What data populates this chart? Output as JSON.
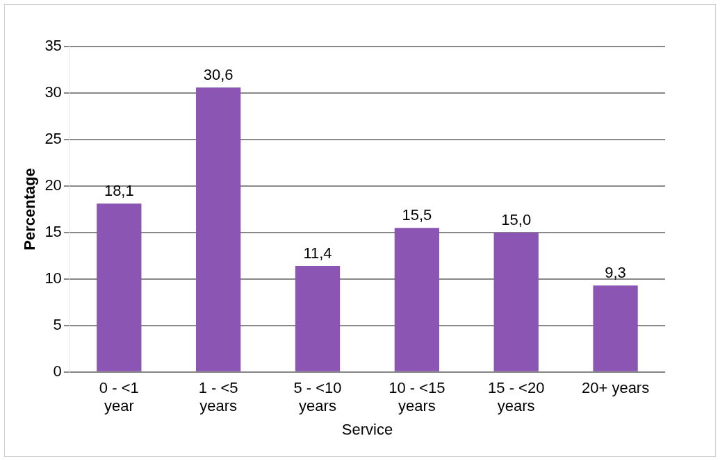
{
  "chart_data": {
    "type": "bar",
    "xlabel": "Service",
    "ylabel": "Percentage",
    "categories": [
      "0 - <1 year",
      "1 - <5 years",
      "5 - <10 years",
      "10 - <15 years",
      "15 - <20 years",
      "20+ years"
    ],
    "values": [
      18.1,
      30.6,
      11.4,
      15.5,
      15.0,
      9.3
    ],
    "value_labels": [
      "18,1",
      "30,6",
      "11,4",
      "15,5",
      "15,0",
      "9,3"
    ],
    "color": "#8b55b4",
    "ylim": [
      0,
      35
    ],
    "yticks": [
      0,
      5,
      10,
      15,
      20,
      25,
      30,
      35
    ],
    "grid": "y",
    "legend": false
  }
}
